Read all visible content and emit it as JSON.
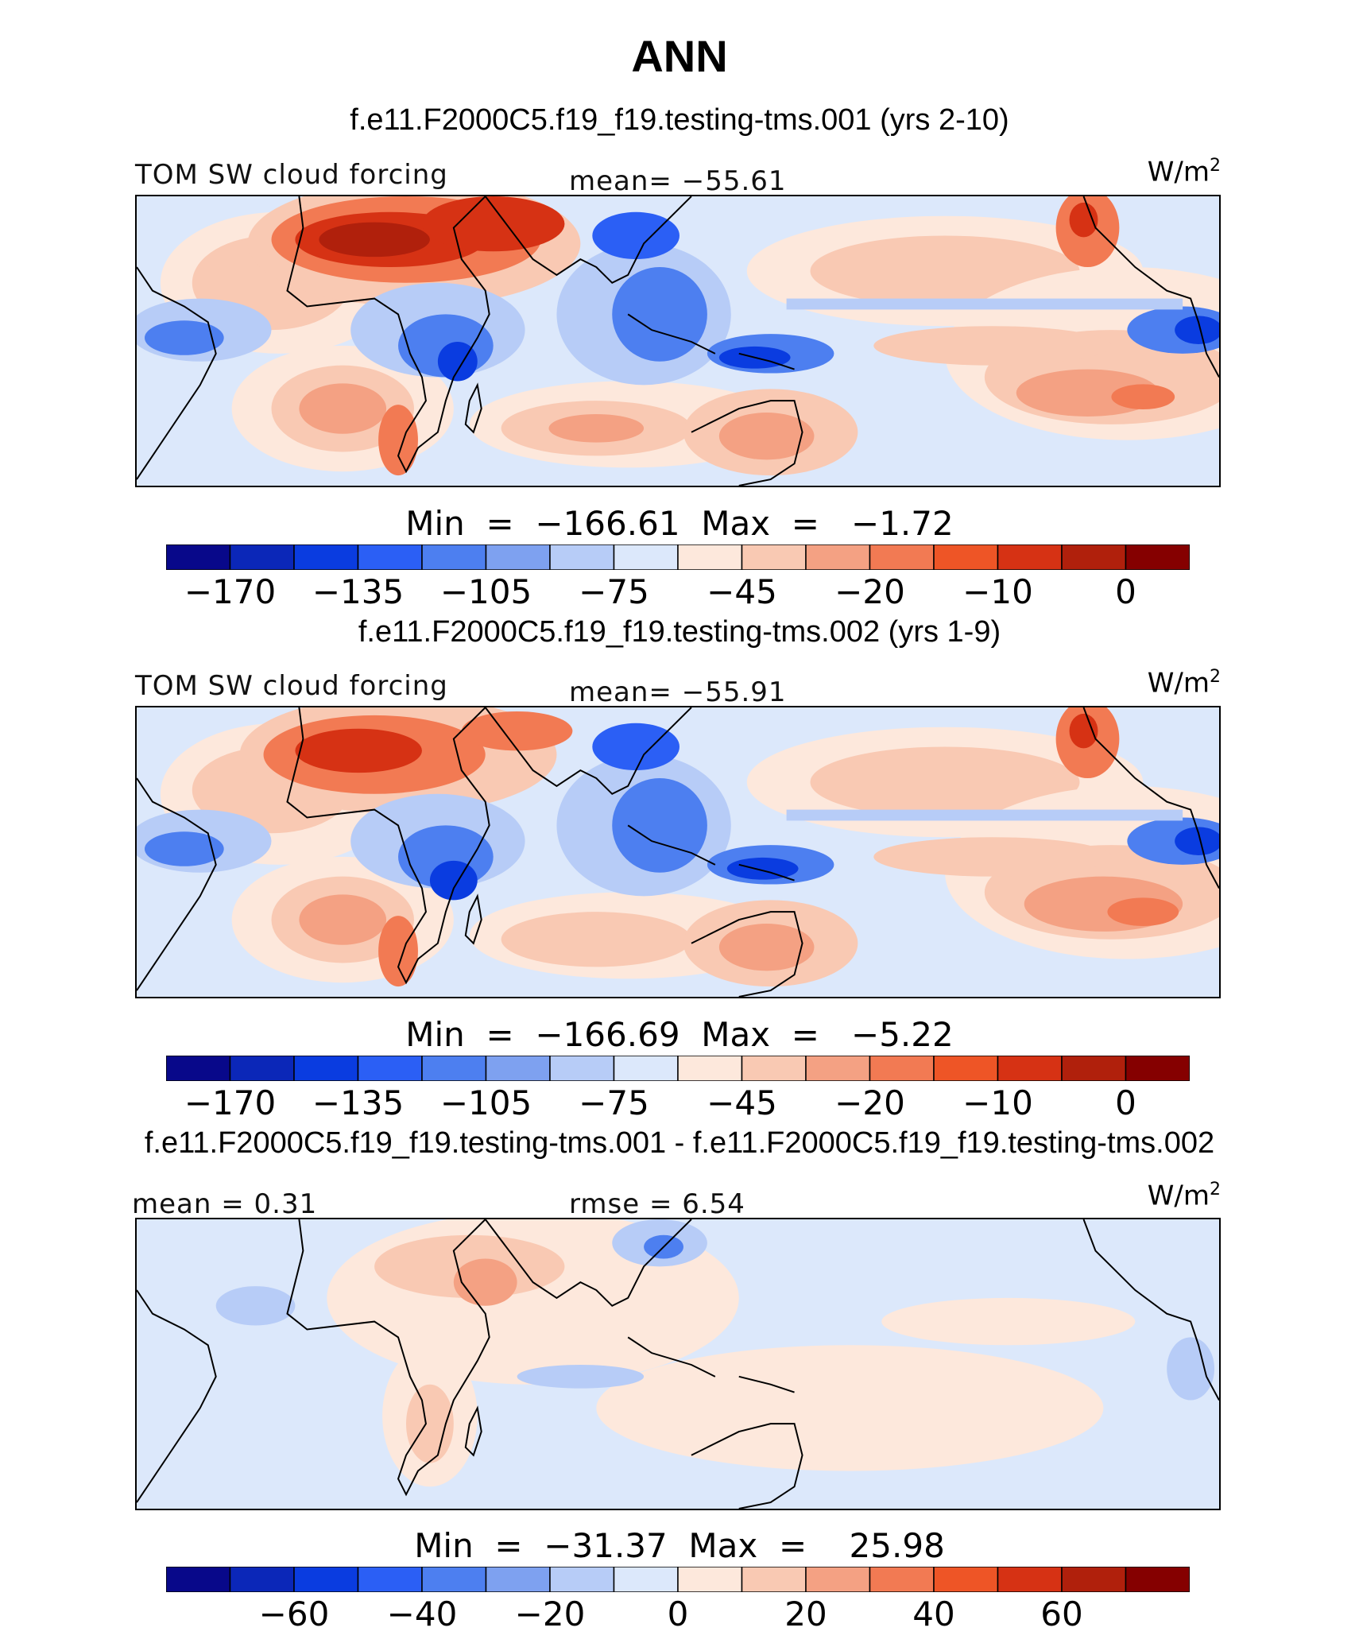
{
  "title": "ANN",
  "colors": {
    "abs_scale": [
      "#08088a",
      "#0b27b8",
      "#0a3ce0",
      "#2b5ff5",
      "#4d7ff0",
      "#7ea1f0",
      "#b7ccf7",
      "#dce8fb",
      "#fde8dc",
      "#f9c9b3",
      "#f4a183",
      "#f27a53",
      "#ee5526",
      "#d63214",
      "#b0200c",
      "#850000"
    ],
    "ocean": "#dce8fb",
    "coast": "#000000"
  },
  "panels": [
    {
      "case": "f.e11.F2000C5.f19_f19.testing-tms.001 (yrs 2-10)",
      "left_label": "TOM SW cloud forcing",
      "center_label": "mean= −55.61",
      "units": "W/m",
      "units_sup": "2",
      "minmax": "Min  =  −166.61  Max  =   −1.72",
      "ticks": [
        "−170",
        "−135",
        "−105",
        "−75",
        "−45",
        "−20",
        "−10",
        "0"
      ]
    },
    {
      "case": "f.e11.F2000C5.f19_f19.testing-tms.002 (yrs 1-9)",
      "left_label": "TOM SW cloud forcing",
      "center_label": "mean= −55.91",
      "units": "W/m",
      "units_sup": "2",
      "minmax": "Min  =  −166.69  Max  =   −5.22",
      "ticks": [
        "−170",
        "−135",
        "−105",
        "−75",
        "−45",
        "−20",
        "−10",
        "0"
      ]
    },
    {
      "case": "f.e11.F2000C5.f19_f19.testing-tms.001 - f.e11.F2000C5.f19_f19.testing-tms.002",
      "left_label": "mean  =    0.31",
      "center_label": "rmse  =     6.54",
      "units": "W/m",
      "units_sup": "2",
      "minmax": "Min  =  −31.37  Max  =    25.98",
      "ticks": [
        "−60",
        "−40",
        "−20",
        "0",
        "20",
        "40",
        "60"
      ]
    }
  ]
}
